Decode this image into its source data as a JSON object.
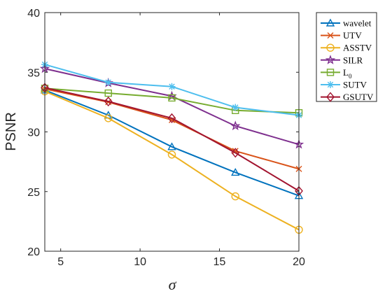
{
  "chart_data": {
    "type": "line",
    "xlabel": "σ",
    "ylabel": "PSNR",
    "x": [
      4,
      8,
      12,
      16,
      20
    ],
    "xlim": [
      4,
      20
    ],
    "ylim": [
      20,
      40
    ],
    "xticks": [
      "5",
      "10",
      "15",
      "20"
    ],
    "yticks": [
      "20",
      "25",
      "30",
      "35",
      "40"
    ],
    "grid": false,
    "legend_position": "outside-top-right",
    "series": [
      {
        "name": "wavelet",
        "label_main": "wavelet",
        "label_sub": "",
        "color": "#0072BD",
        "marker": "triangle",
        "values": [
          33.5,
          31.4,
          28.75,
          26.6,
          24.65
        ]
      },
      {
        "name": "UTV",
        "label_main": "UTV",
        "label_sub": "",
        "color": "#D95319",
        "marker": "x",
        "values": [
          33.6,
          32.5,
          31.0,
          28.4,
          26.9
        ]
      },
      {
        "name": "ASSTV",
        "label_main": "ASSTV",
        "label_sub": "",
        "color": "#EDB120",
        "marker": "circle",
        "values": [
          33.4,
          31.15,
          28.1,
          24.6,
          21.8
        ]
      },
      {
        "name": "SILR",
        "label_main": "SILR",
        "label_sub": "",
        "color": "#7E2F8E",
        "marker": "star",
        "values": [
          35.3,
          34.1,
          33.0,
          30.5,
          28.95
        ]
      },
      {
        "name": "L0",
        "label_main": "L",
        "label_sub": "0",
        "color": "#77AC30",
        "marker": "square",
        "values": [
          33.65,
          33.25,
          32.85,
          31.8,
          31.6
        ]
      },
      {
        "name": "SUTV",
        "label_main": "SUTV",
        "label_sub": "",
        "color": "#4DBEEE",
        "marker": "asterisk",
        "values": [
          35.65,
          34.15,
          33.8,
          32.05,
          31.4
        ]
      },
      {
        "name": "GSUTV",
        "label_main": "GSUTV",
        "label_sub": "",
        "color": "#A2142F",
        "marker": "diamond",
        "values": [
          33.7,
          32.55,
          31.15,
          28.25,
          25.05
        ]
      }
    ]
  }
}
